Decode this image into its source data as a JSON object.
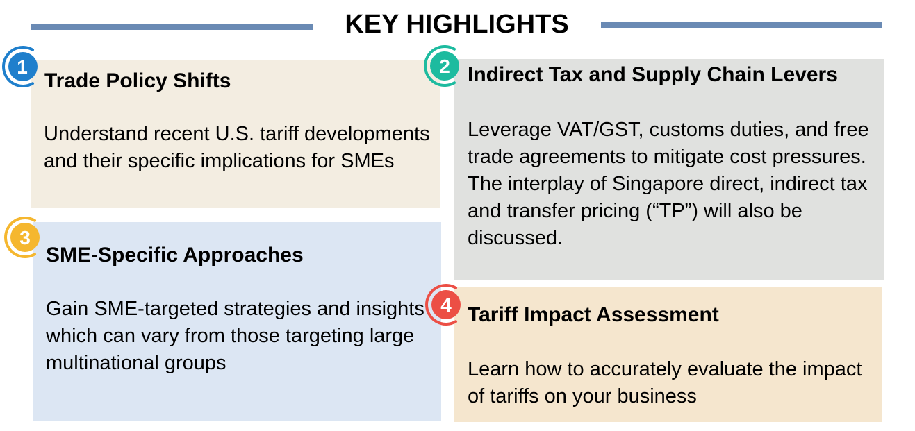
{
  "header": {
    "title": "KEY HIGHLIGHTS"
  },
  "cards": [
    {
      "number": "1",
      "title": "Trade Policy Shifts",
      "body": "Understand recent U.S. tariff developments and their specific implications for SMEs",
      "accent": "#1f7fcc"
    },
    {
      "number": "2",
      "title": "Indirect Tax and Supply Chain Levers",
      "body": "Leverage VAT/GST, customs duties, and free trade agreements to mitigate cost pressures. The interplay of Singapore direct, indirect tax and transfer pricing (“TP”) will also be discussed.",
      "accent": "#1dbb9f"
    },
    {
      "number": "3",
      "title": "SME-Specific Approaches",
      "body": "Gain SME-targeted strategies and insights which can vary from those targeting large multinational groups",
      "accent": "#f5b72f"
    },
    {
      "number": "4",
      "title": "Tariff Impact Assessment",
      "body": "Learn how to accurately evaluate the impact of tariffs on your business",
      "accent": "#ec4f45"
    }
  ]
}
